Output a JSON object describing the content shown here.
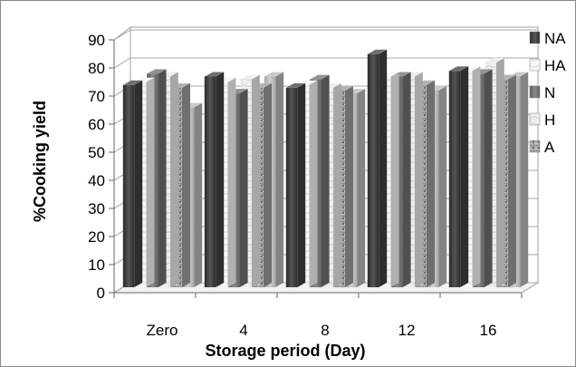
{
  "chart_data": {
    "type": "bar",
    "title": "",
    "xlabel": "Storage period (Day)",
    "ylabel": "%Cooking yield",
    "categories": [
      "Zero",
      "4",
      "8",
      "12",
      "16"
    ],
    "ylim": [
      0,
      90
    ],
    "yticks": [
      "0",
      "10",
      "20",
      "30",
      "40",
      "50",
      "60",
      "70",
      "80",
      "90"
    ],
    "grid": true,
    "legend_position": "right",
    "series": [
      {
        "name": "NA",
        "values": [
          72,
          75,
          71,
          83,
          77
        ],
        "color": "#404040",
        "pattern": "solid-dark"
      },
      {
        "name": "HA",
        "values": [
          73,
          73,
          72,
          75,
          77
        ],
        "color": "#f4f4f4",
        "pattern": "marble-light"
      },
      {
        "name": "N",
        "values": [
          76,
          69,
          74,
          75,
          76
        ],
        "color": "#6f6f6f",
        "pattern": "solid-mid"
      },
      {
        "name": "H",
        "values": [
          75,
          74,
          71,
          75,
          80
        ],
        "color": "#e8e8e8",
        "pattern": "marble-white"
      },
      {
        "name": "A",
        "values": [
          71,
          71,
          70,
          72,
          74
        ],
        "color": "#9a9a9a",
        "pattern": "granite"
      },
      {
        "name": "",
        "values": [
          64,
          75,
          69,
          70,
          75
        ],
        "color": "#b8b8b8",
        "pattern": "solid-light"
      }
    ]
  }
}
